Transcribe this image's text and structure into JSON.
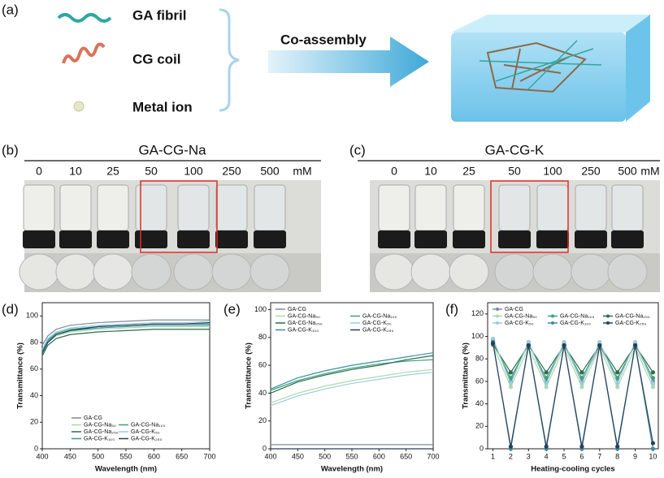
{
  "panel_labels": [
    "(a)",
    "(b)",
    "(c)",
    "(d)",
    "(e)",
    "(f)"
  ],
  "schematic": {
    "items": [
      "GA fibril",
      "CG coil",
      "Metal ion"
    ],
    "arrow_label": "Co-assembly"
  },
  "photos": [
    {
      "title": "GA-CG-Na",
      "concentrations": [
        "0",
        "10",
        "25",
        "50",
        "100",
        "250",
        "500"
      ],
      "unit": "mM"
    },
    {
      "title": "GA-CG-K",
      "concentrations": [
        "0",
        "10",
        "25",
        "50",
        "100",
        "250",
        "500"
      ],
      "unit": "mM"
    }
  ],
  "chart_data": [
    {
      "type": "line",
      "xlabel": "Wavelength (nm)",
      "ylabel": "Transmittance (%)",
      "x": [
        400,
        410,
        425,
        450,
        500,
        550,
        600,
        650,
        700
      ],
      "xlim": [
        400,
        700
      ],
      "xticks": [
        400,
        450,
        500,
        550,
        600,
        650,
        700
      ],
      "ylim": [
        0,
        110
      ],
      "yticks": [
        0,
        20,
        40,
        60,
        80,
        100
      ],
      "legend": "lower right",
      "series": [
        {
          "name": "GA-CG",
          "color": "#7d8c9c",
          "values": [
            78,
            85,
            90,
            93,
            95,
            96,
            97,
            97,
            97
          ]
        },
        {
          "name": "GA-CG-Na₅₀",
          "color": "#a9dba9",
          "values": [
            72,
            80,
            85,
            88,
            90,
            91,
            92,
            92,
            92
          ]
        },
        {
          "name": "GA-CG-Na₁₀₀",
          "color": "#3aa37a",
          "values": [
            74,
            82,
            87,
            90,
            92,
            93,
            94,
            94,
            94
          ]
        },
        {
          "name": "GA-CG-Na₂₅₀",
          "color": "#2f6b4a",
          "values": [
            70,
            78,
            83,
            86,
            88,
            89,
            90,
            90,
            90
          ]
        },
        {
          "name": "GA-CG-K₅₀",
          "color": "#9ccbe0",
          "values": [
            75,
            83,
            88,
            91,
            93,
            94,
            95,
            95,
            96
          ]
        },
        {
          "name": "GA-CG-K₁₀₀",
          "color": "#3b8fa8",
          "values": [
            73,
            81,
            86,
            89,
            91,
            92,
            93,
            93,
            93
          ]
        },
        {
          "name": "GA-CG-K₂₅₀",
          "color": "#2a3f5a",
          "values": [
            72,
            80,
            86,
            89,
            92,
            93,
            94,
            94,
            95
          ]
        }
      ]
    },
    {
      "type": "line",
      "xlabel": "Wavelength (nm)",
      "ylabel": "Transmittance (%)",
      "x": [
        400,
        450,
        500,
        550,
        600,
        650,
        700
      ],
      "xlim": [
        400,
        700
      ],
      "xticks": [
        400,
        450,
        500,
        550,
        600,
        650,
        700
      ],
      "ylim": [
        0,
        105
      ],
      "yticks": [
        0,
        20,
        40,
        60,
        80,
        100
      ],
      "legend": "upper left",
      "series": [
        {
          "name": "GA-CG",
          "color": "#7d8c9c",
          "values": [
            3,
            3,
            3,
            3,
            3,
            3,
            3
          ]
        },
        {
          "name": "GA-CG-Na₅₀",
          "color": "#a9dba9",
          "values": [
            33,
            40,
            45,
            49,
            52,
            55,
            57
          ]
        },
        {
          "name": "GA-CG-Na₁₀₀",
          "color": "#3aa37a",
          "values": [
            42,
            49,
            54,
            58,
            61,
            63,
            64
          ]
        },
        {
          "name": "GA-CG-Na₂₅₀",
          "color": "#2f6b4a",
          "values": [
            40,
            48,
            53,
            57,
            60,
            64,
            67
          ]
        },
        {
          "name": "GA-CG-K₅₀",
          "color": "#9ccbe0",
          "values": [
            31,
            38,
            43,
            47,
            50,
            53,
            55
          ]
        },
        {
          "name": "GA-CG-K₁₀₀",
          "color": "#3b8fa8",
          "values": [
            43,
            51,
            56,
            60,
            63,
            66,
            69
          ]
        },
        {
          "name": "GA-CG-K₂₅₀",
          "color": "#2a3f5a",
          "values": [
            0,
            0,
            0,
            0,
            0,
            0,
            0
          ]
        }
      ]
    },
    {
      "type": "line",
      "markers": true,
      "xlabel": "Heating-cooling cycles",
      "ylabel": "Transmittance (%)",
      "x": [
        1,
        2,
        3,
        4,
        5,
        6,
        7,
        8,
        9,
        10
      ],
      "xlim": [
        0.7,
        10.3
      ],
      "xticks": [
        1,
        2,
        3,
        4,
        5,
        6,
        7,
        8,
        9,
        10
      ],
      "ylim": [
        0,
        130
      ],
      "yticks": [
        0,
        20,
        40,
        60,
        80,
        100,
        120
      ],
      "legend": "upper center",
      "series": [
        {
          "name": "GA-CG",
          "color": "#7d8c9c",
          "values": [
            97,
            60,
            95,
            60,
            93,
            60,
            92,
            62,
            93,
            60
          ]
        },
        {
          "name": "GA-CG-Na₅₀",
          "color": "#a9dba9",
          "values": [
            92,
            55,
            90,
            55,
            90,
            55,
            90,
            55,
            90,
            55
          ]
        },
        {
          "name": "GA-CG-Na₁₀₀",
          "color": "#3aa37a",
          "values": [
            95,
            63,
            93,
            63,
            93,
            63,
            93,
            63,
            93,
            63
          ]
        },
        {
          "name": "GA-CG-Na₂₅₀",
          "color": "#2f6b4a",
          "values": [
            93,
            68,
            92,
            68,
            92,
            68,
            92,
            68,
            92,
            68
          ]
        },
        {
          "name": "GA-CG-K₅₀",
          "color": "#9ccbe0",
          "values": [
            98,
            58,
            95,
            58,
            95,
            58,
            95,
            58,
            95,
            58
          ]
        },
        {
          "name": "GA-CG-K₁₀₀",
          "color": "#3b8fa8",
          "values": [
            95,
            0,
            92,
            0,
            92,
            0,
            92,
            0,
            92,
            0
          ]
        },
        {
          "name": "GA-CG-K₂₅₀",
          "color": "#2a3f5a",
          "values": [
            94,
            2,
            92,
            2,
            92,
            2,
            92,
            2,
            92,
            5
          ]
        }
      ]
    }
  ]
}
